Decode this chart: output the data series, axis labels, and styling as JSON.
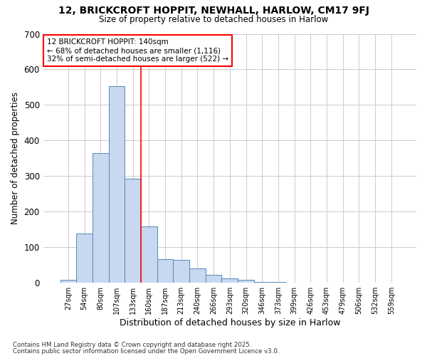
{
  "title1": "12, BRICKCROFT HOPPIT, NEWHALL, HARLOW, CM17 9FJ",
  "title2": "Size of property relative to detached houses in Harlow",
  "xlabel": "Distribution of detached houses by size in Harlow",
  "ylabel": "Number of detached properties",
  "categories": [
    "27sqm",
    "54sqm",
    "80sqm",
    "107sqm",
    "133sqm",
    "160sqm",
    "187sqm",
    "213sqm",
    "240sqm",
    "266sqm",
    "293sqm",
    "320sqm",
    "346sqm",
    "373sqm",
    "399sqm",
    "426sqm",
    "453sqm",
    "479sqm",
    "506sqm",
    "532sqm",
    "559sqm"
  ],
  "values": [
    8,
    138,
    365,
    552,
    293,
    158,
    66,
    65,
    40,
    22,
    13,
    8,
    3,
    2,
    0,
    0,
    0,
    0,
    0,
    0,
    0
  ],
  "bar_color": "#c8d8f0",
  "bar_edge_color": "#5588bb",
  "grid_color": "#cccccc",
  "background_color": "#ffffff",
  "red_line_x": 4.5,
  "annotation_line1": "12 BRICKCROFT HOPPIT: 140sqm",
  "annotation_line2": "← 68% of detached houses are smaller (1,116)",
  "annotation_line3": "32% of semi-detached houses are larger (522) →",
  "annotation_box_color": "white",
  "annotation_box_edge": "red",
  "ylim": [
    0,
    700
  ],
  "yticks": [
    0,
    100,
    200,
    300,
    400,
    500,
    600,
    700
  ],
  "footer1": "Contains HM Land Registry data © Crown copyright and database right 2025.",
  "footer2": "Contains public sector information licensed under the Open Government Licence v3.0."
}
